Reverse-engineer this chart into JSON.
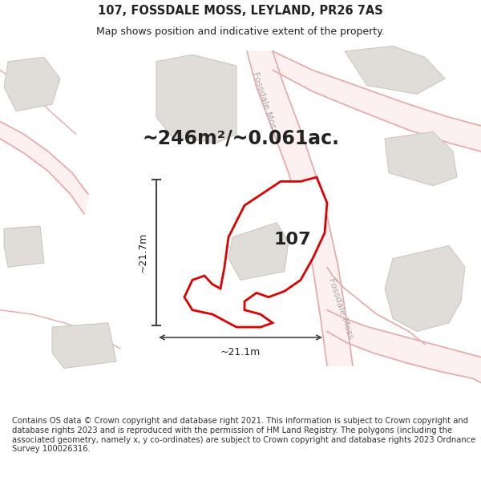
{
  "title": "107, FOSSDALE MOSS, LEYLAND, PR26 7AS",
  "subtitle": "Map shows position and indicative extent of the property.",
  "area_text": "~246m²/~0.061ac.",
  "label_107": "107",
  "dim_horizontal": "~21.1m",
  "dim_vertical": "~21.7m",
  "road_label_top": "Fossdale Moss",
  "road_label_bottom": "Fossdale Moss",
  "footer": "Contains OS data © Crown copyright and database right 2021. This information is subject to Crown copyright and database rights 2023 and is reproduced with the permission of HM Land Registry. The polygons (including the associated geometry, namely x, y co-ordinates) are subject to Crown copyright and database rights 2023 Ordnance Survey 100026316.",
  "bg_map": "#ffffff",
  "road_fill": "#f5c8c8",
  "road_line": "#e8a8a8",
  "building_fill": "#e0ddd8",
  "building_edge": "#c8c5c0",
  "property_fill": "#ffffff",
  "property_edge": "#dd0000",
  "dim_line_color": "#444444",
  "text_color": "#222222",
  "road_text_color": "#aaaaaa",
  "footer_color": "#333333",
  "title_fontsize": 10.5,
  "subtitle_fontsize": 9,
  "area_fontsize": 17,
  "label_fontsize": 16,
  "road_fontsize": 8,
  "dim_fontsize": 9,
  "footer_fontsize": 7.2
}
